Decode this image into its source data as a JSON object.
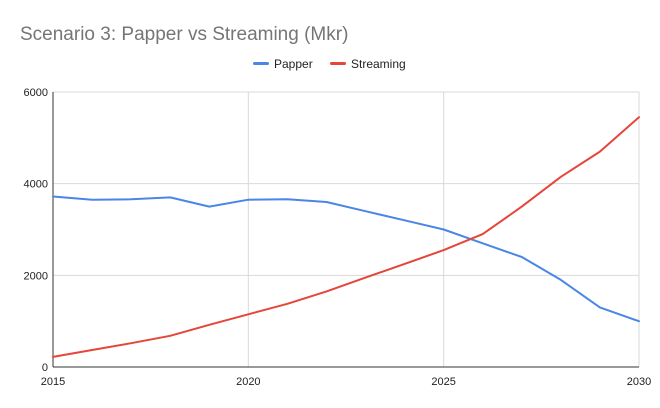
{
  "chart_data": {
    "type": "line",
    "title": "Scenario 3: Papper vs Streaming (Mkr)",
    "xlabel": "",
    "ylabel": "",
    "xlim": [
      2015,
      2030
    ],
    "ylim": [
      0,
      6000
    ],
    "x_ticks": [
      2015,
      2020,
      2025,
      2030
    ],
    "y_ticks": [
      0,
      2000,
      4000,
      6000
    ],
    "grid": true,
    "legend_position": "top-center",
    "x": [
      2015,
      2016,
      2017,
      2018,
      2019,
      2020,
      2021,
      2022,
      2023,
      2024,
      2025,
      2026,
      2027,
      2028,
      2029,
      2030
    ],
    "series": [
      {
        "name": "Papper",
        "color": "#4a86e8",
        "values": [
          3720,
          3650,
          3660,
          3700,
          3500,
          3650,
          3660,
          3600,
          3400,
          3200,
          3000,
          2700,
          2400,
          1900,
          1300,
          1000
        ]
      },
      {
        "name": "Streaming",
        "color": "#e6453a",
        "values": [
          220,
          370,
          520,
          680,
          920,
          1150,
          1380,
          1650,
          1950,
          2250,
          2550,
          2900,
          3500,
          4150,
          4700,
          5450
        ]
      }
    ]
  }
}
